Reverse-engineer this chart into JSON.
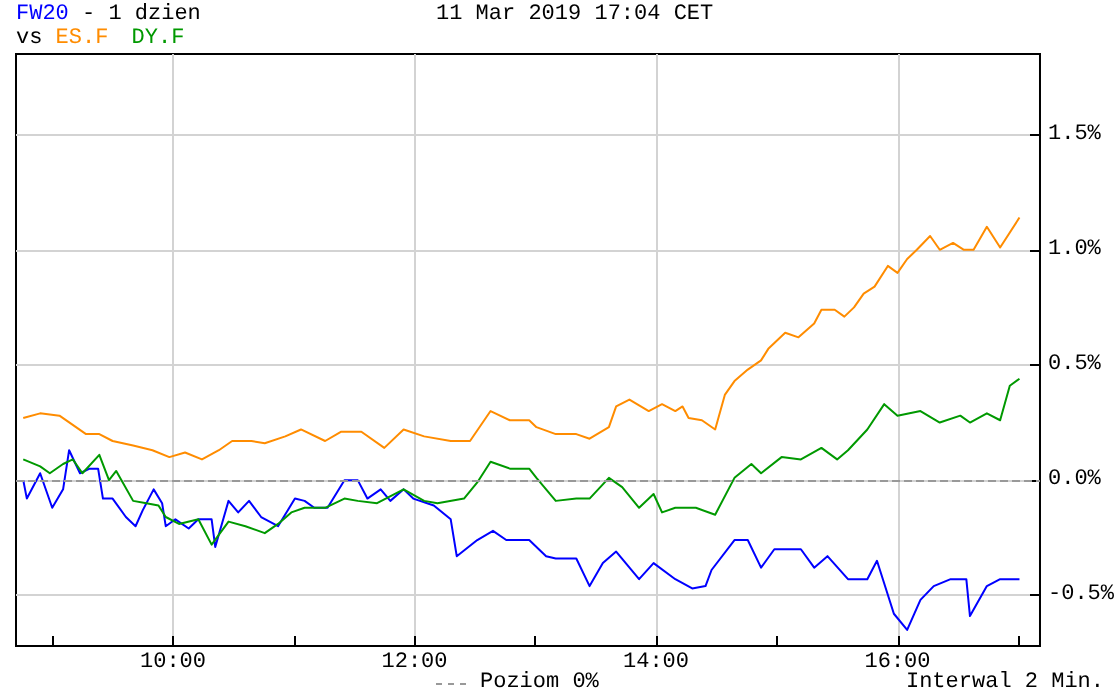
{
  "chart_data": {
    "type": "line",
    "title": "- 1 dzien",
    "subtitle": "11 Mar 2019 17:04 CET",
    "annotations": [
      "vs",
      "Interwal 2 Min.",
      "Poziom 0%"
    ],
    "legend": "top left",
    "grid": true,
    "line_style": "solid",
    "xlim": [
      8.7,
      17.18
    ],
    "ylim": [
      -0.72,
      1.85
    ],
    "xticks": [
      {
        "value": 9,
        "label": null
      },
      {
        "value": 10,
        "label": "10:00"
      },
      {
        "value": 11,
        "label": null
      },
      {
        "value": 12,
        "label": "12:00"
      },
      {
        "value": 13,
        "label": null
      },
      {
        "value": 14,
        "label": "14:00"
      },
      {
        "value": 15,
        "label": null
      },
      {
        "value": 16,
        "label": "16:00"
      },
      {
        "value": 17,
        "label": null
      }
    ],
    "yticks": [
      {
        "value": -0.5,
        "label": "-0.5%"
      },
      {
        "value": 0,
        "label": "0.0%"
      },
      {
        "value": 0.5,
        "label": "0.5%"
      },
      {
        "value": 1,
        "label": "1.0%"
      },
      {
        "value": 1.5,
        "label": "1.5%"
      }
    ],
    "ref_lines": [
      {
        "axis": "y",
        "value": 0,
        "color": "#999999",
        "line_style": "dashed"
      }
    ],
    "series": [
      {
        "name": "FW20",
        "color": "#0000ff",
        "x": [
          8.76,
          8.79,
          8.9,
          9.0,
          9.09,
          9.14,
          9.23,
          9.31,
          9.38,
          9.42,
          9.5,
          9.61,
          9.69,
          9.75,
          9.84,
          9.91,
          9.94,
          10.02,
          10.13,
          10.21,
          10.32,
          10.35,
          10.46,
          10.54,
          10.63,
          10.73,
          10.87,
          11.01,
          11.09,
          11.17,
          11.28,
          11.42,
          11.53,
          11.61,
          11.72,
          11.8,
          11.91,
          11.99,
          12.16,
          12.3,
          12.35,
          12.52,
          12.65,
          12.76,
          12.95,
          13.09,
          13.17,
          13.34,
          13.45,
          13.56,
          13.67,
          13.86,
          13.98,
          14.16,
          14.3,
          14.41,
          14.46,
          14.65,
          14.76,
          14.87,
          14.98,
          15.2,
          15.31,
          15.42,
          15.59,
          15.75,
          15.83,
          15.97,
          16.08,
          16.19,
          16.3,
          16.44,
          16.57,
          16.6,
          16.74,
          16.85,
          17.01
        ],
        "values": [
          0,
          -0.08,
          0.03,
          -0.12,
          -0.04,
          0.13,
          0.03,
          0.05,
          0.05,
          -0.08,
          -0.08,
          -0.16,
          -0.2,
          -0.13,
          -0.04,
          -0.1,
          -0.2,
          -0.17,
          -0.21,
          -0.17,
          -0.17,
          -0.29,
          -0.09,
          -0.14,
          -0.09,
          -0.16,
          -0.2,
          -0.08,
          -0.09,
          -0.12,
          -0.12,
          0,
          0,
          -0.08,
          -0.04,
          -0.09,
          -0.04,
          -0.08,
          -0.11,
          -0.17,
          -0.33,
          -0.26,
          -0.22,
          -0.26,
          -0.26,
          -0.33,
          -0.34,
          -0.34,
          -0.46,
          -0.36,
          -0.31,
          -0.43,
          -0.36,
          -0.43,
          -0.47,
          -0.46,
          -0.39,
          -0.26,
          -0.26,
          -0.38,
          -0.3,
          -0.3,
          -0.38,
          -0.33,
          -0.43,
          -0.43,
          -0.35,
          -0.58,
          -0.65,
          -0.52,
          -0.46,
          -0.43,
          -0.43,
          -0.59,
          -0.46,
          -0.43,
          -0.43
        ]
      },
      {
        "name": "ES.F",
        "color": "#ff8c00",
        "x": [
          8.76,
          8.9,
          9.06,
          9.28,
          9.39,
          9.5,
          9.67,
          9.83,
          9.97,
          10.1,
          10.24,
          10.38,
          10.49,
          10.65,
          10.76,
          10.93,
          11.06,
          11.26,
          11.39,
          11.56,
          11.75,
          11.91,
          12.08,
          12.3,
          12.46,
          12.63,
          12.79,
          12.95,
          13.01,
          13.17,
          13.34,
          13.45,
          13.61,
          13.67,
          13.78,
          13.94,
          14.05,
          14.16,
          14.22,
          14.27,
          14.38,
          14.49,
          14.57,
          14.65,
          14.76,
          14.87,
          14.93,
          15.07,
          15.18,
          15.31,
          15.37,
          15.48,
          15.56,
          15.64,
          15.72,
          15.81,
          15.92,
          16.0,
          16.08,
          16.16,
          16.27,
          16.35,
          16.46,
          16.55,
          16.63,
          16.74,
          16.85,
          17.01
        ],
        "values": [
          0.27,
          0.29,
          0.28,
          0.2,
          0.2,
          0.17,
          0.15,
          0.13,
          0.1,
          0.12,
          0.09,
          0.13,
          0.17,
          0.17,
          0.16,
          0.19,
          0.22,
          0.17,
          0.21,
          0.21,
          0.14,
          0.22,
          0.19,
          0.17,
          0.17,
          0.3,
          0.26,
          0.26,
          0.23,
          0.2,
          0.2,
          0.18,
          0.23,
          0.32,
          0.35,
          0.3,
          0.33,
          0.3,
          0.32,
          0.27,
          0.26,
          0.22,
          0.37,
          0.43,
          0.48,
          0.52,
          0.57,
          0.64,
          0.62,
          0.68,
          0.74,
          0.74,
          0.71,
          0.75,
          0.81,
          0.84,
          0.93,
          0.9,
          0.96,
          1.0,
          1.06,
          1.0,
          1.03,
          1.0,
          1.0,
          1.1,
          1.01,
          1.14
        ]
      },
      {
        "name": "DY.F",
        "color": "#009900",
        "x": [
          8.76,
          8.9,
          8.98,
          9.09,
          9.17,
          9.25,
          9.39,
          9.47,
          9.53,
          9.67,
          9.78,
          9.88,
          9.94,
          10.05,
          10.21,
          10.32,
          10.46,
          10.6,
          10.76,
          10.87,
          10.98,
          11.09,
          11.26,
          11.42,
          11.53,
          11.69,
          11.91,
          12.08,
          12.19,
          12.41,
          12.52,
          12.63,
          12.79,
          12.95,
          13.01,
          13.17,
          13.34,
          13.45,
          13.61,
          13.72,
          13.86,
          13.98,
          14.05,
          14.16,
          14.33,
          14.49,
          14.65,
          14.79,
          14.87,
          15.04,
          15.2,
          15.37,
          15.5,
          15.59,
          15.75,
          15.89,
          16.0,
          16.19,
          16.35,
          16.52,
          16.6,
          16.74,
          16.85,
          16.93,
          17.01
        ],
        "values": [
          0.09,
          0.06,
          0.03,
          0.07,
          0.09,
          0.03,
          0.11,
          0,
          0.04,
          -0.09,
          -0.1,
          -0.11,
          -0.16,
          -0.19,
          -0.17,
          -0.28,
          -0.18,
          -0.2,
          -0.23,
          -0.19,
          -0.14,
          -0.12,
          -0.12,
          -0.08,
          -0.09,
          -0.1,
          -0.04,
          -0.09,
          -0.1,
          -0.08,
          -0.01,
          0.08,
          0.05,
          0.05,
          0.01,
          -0.09,
          -0.08,
          -0.08,
          0.01,
          -0.03,
          -0.12,
          -0.06,
          -0.14,
          -0.12,
          -0.12,
          -0.15,
          0.01,
          0.07,
          0.03,
          0.1,
          0.09,
          0.14,
          0.09,
          0.13,
          0.22,
          0.33,
          0.28,
          0.3,
          0.25,
          0.28,
          0.25,
          0.29,
          0.26,
          0.41,
          0.44
        ]
      }
    ]
  }
}
